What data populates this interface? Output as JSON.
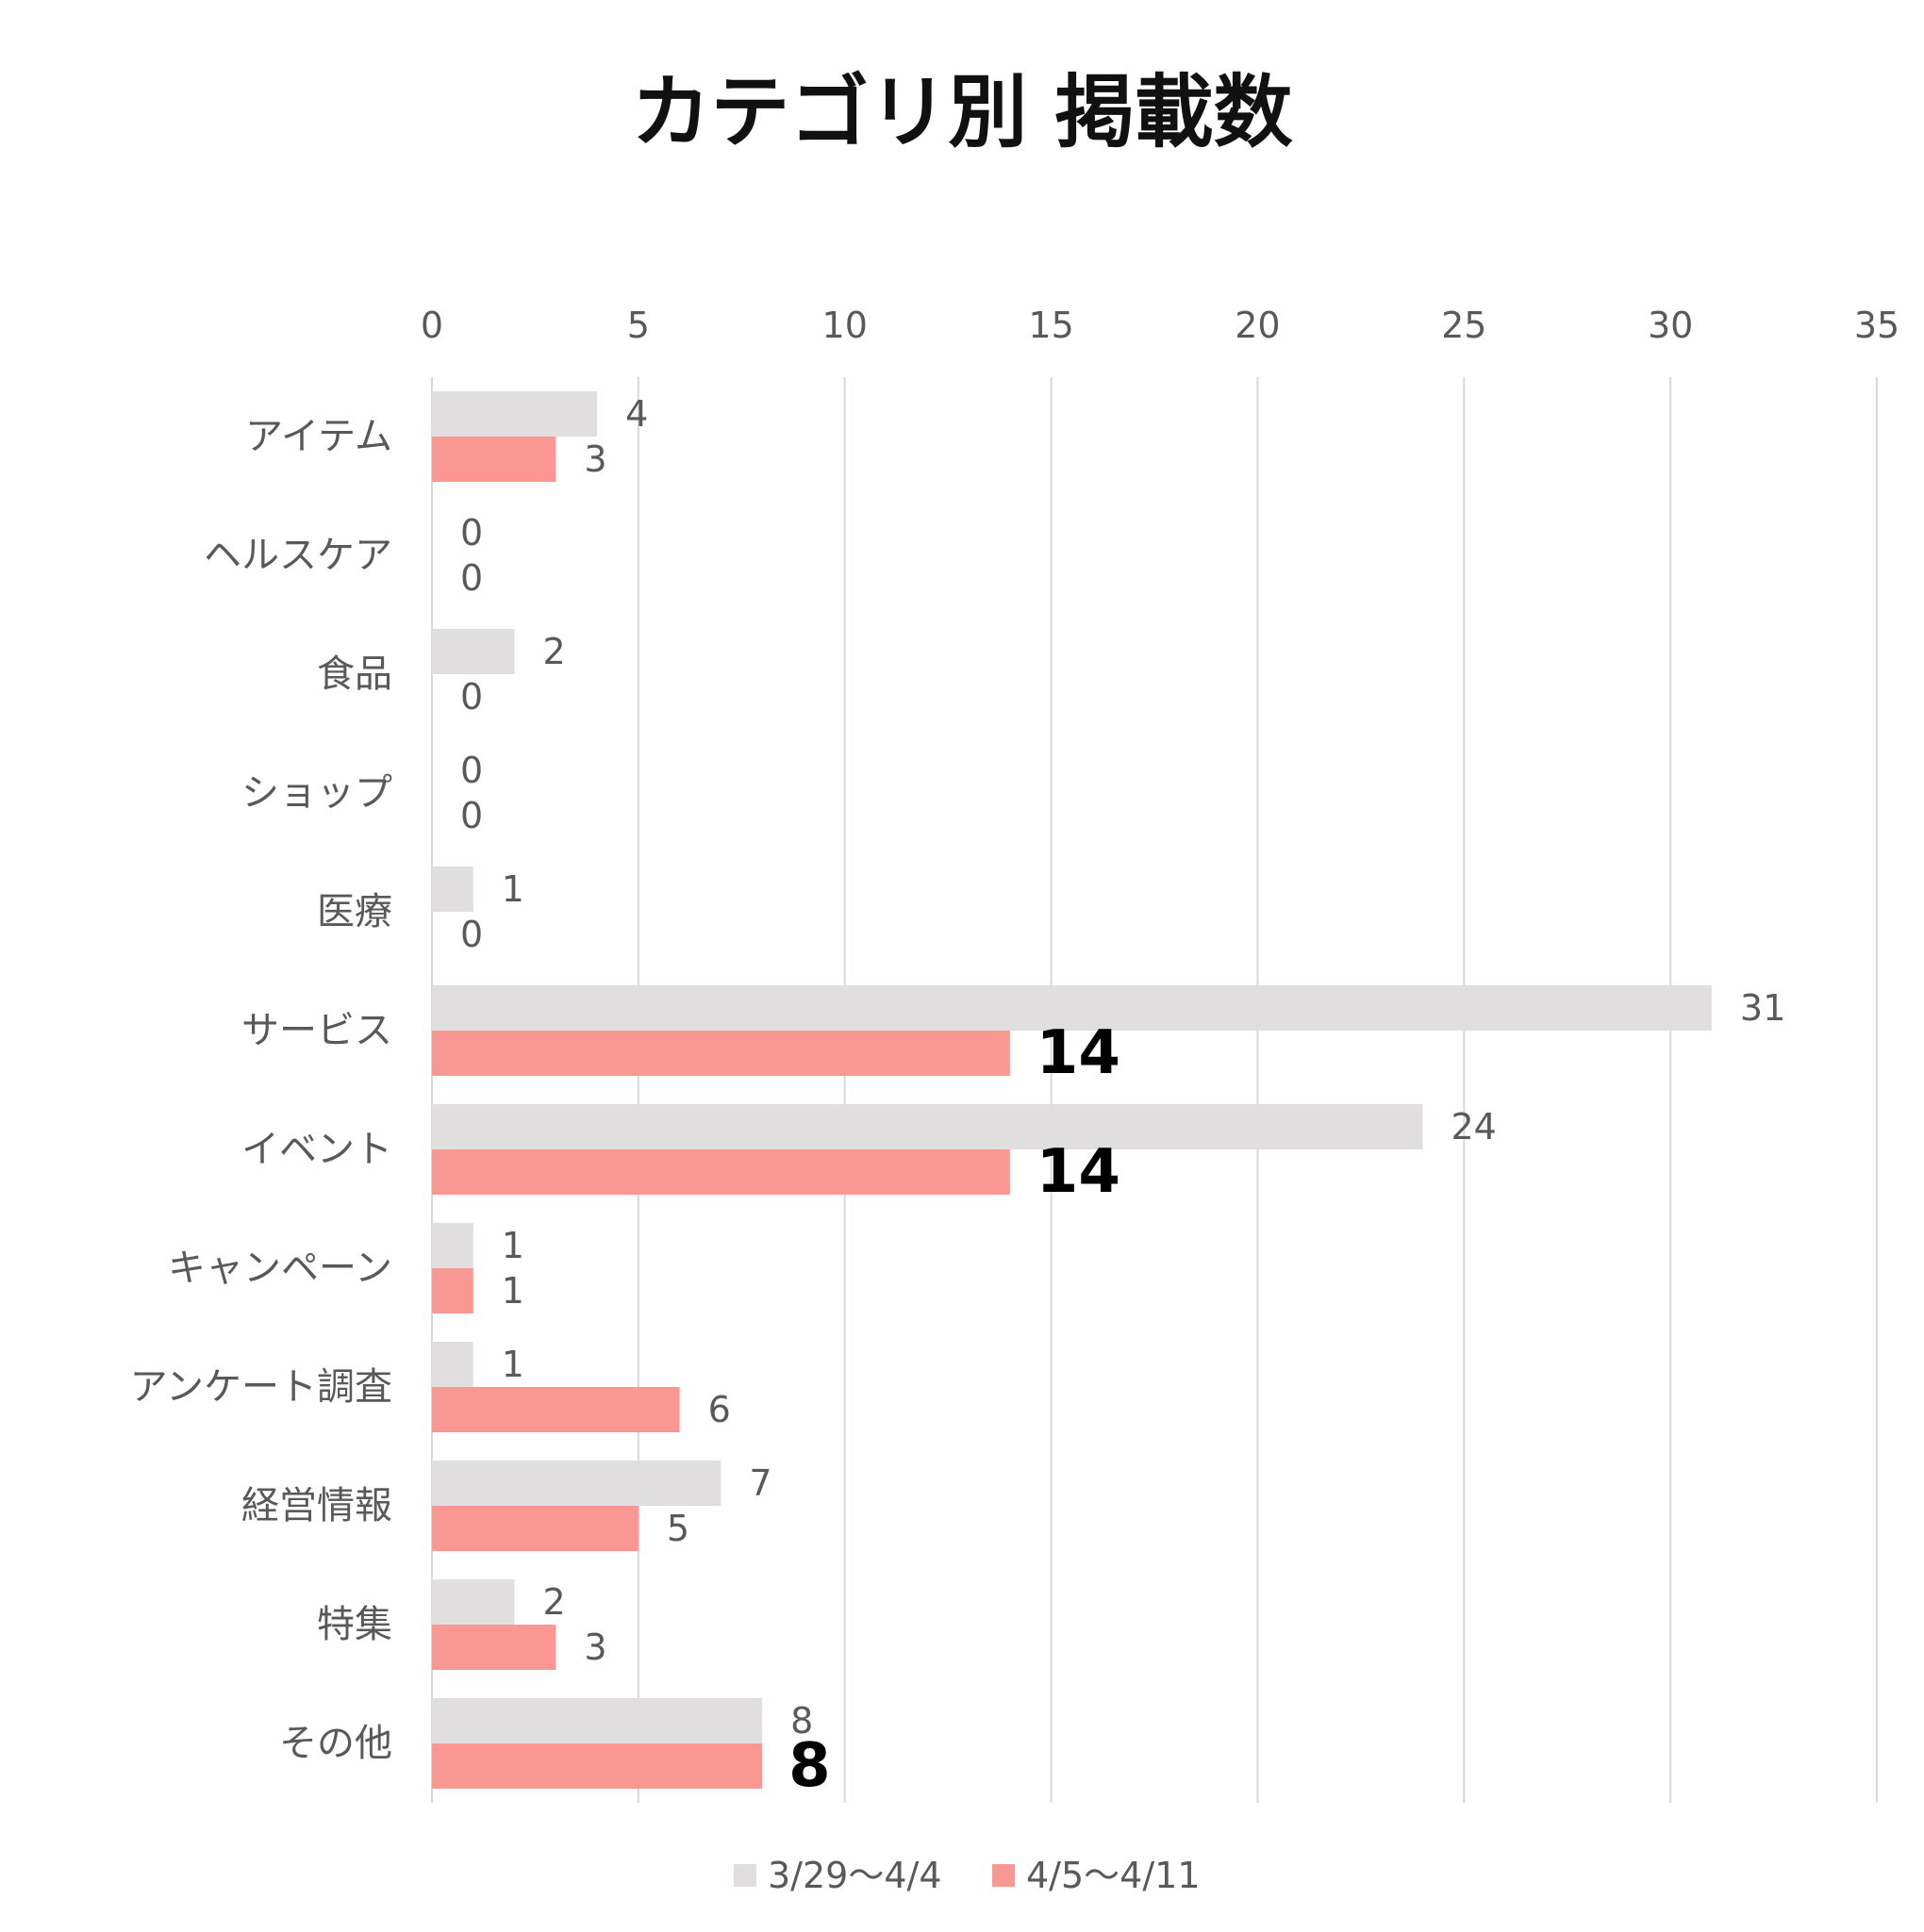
{
  "chart_data": {
    "type": "bar",
    "orientation": "horizontal",
    "title": "カテゴリ別 掲載数",
    "categories": [
      "アイテム",
      "ヘルスケア",
      "食品",
      "ショップ",
      "医療",
      "サービス",
      "イベント",
      "キャンペーン",
      "アンケート調査",
      "経営情報",
      "特集",
      "その他"
    ],
    "series": [
      {
        "name": "3/29〜4/4",
        "color": "#e1dedf",
        "values": [
          4,
          0,
          2,
          0,
          1,
          31,
          24,
          1,
          1,
          7,
          2,
          8
        ]
      },
      {
        "name": "4/5〜4/11",
        "color": "#f99893",
        "values": [
          3,
          0,
          0,
          0,
          0,
          14,
          14,
          1,
          6,
          5,
          3,
          8
        ],
        "emphasized_labels": [
          "サービス",
          "イベント",
          "その他"
        ]
      }
    ],
    "xlim": [
      0,
      35
    ],
    "x_ticks": [
      "0",
      "5",
      "10",
      "15",
      "20",
      "25",
      "30",
      "35"
    ],
    "x_axis_position": "top",
    "grid": true,
    "legend": "bottom",
    "data_labels": true
  }
}
